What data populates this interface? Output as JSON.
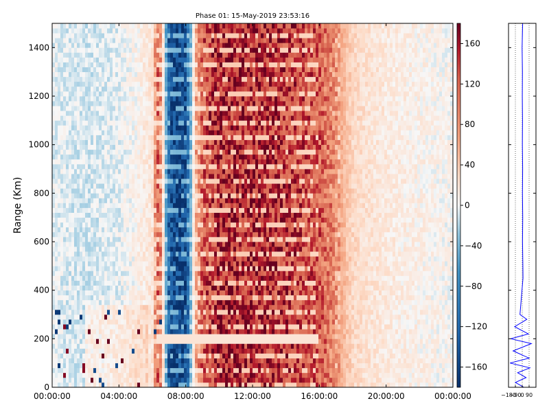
{
  "chart_data": [
    {
      "type": "heatmap",
      "title": "Phase 01: 15-May-2019 23:53:16",
      "xlabel": "",
      "ylabel": "Range (Km)",
      "xlim_hours": [
        0,
        24
      ],
      "ylim": [
        0,
        1500
      ],
      "x_tick_labels": [
        "00:00:00",
        "04:00:00",
        "08:00:00",
        "12:00:00",
        "16:00:00",
        "20:00:00",
        "00:00:00"
      ],
      "y_ticks": [
        0,
        200,
        400,
        600,
        800,
        1000,
        1200,
        1400
      ],
      "y_tick_labels": [
        "0",
        "200",
        "400",
        "600",
        "800",
        "1000",
        "1200",
        "1400"
      ],
      "colorbar": {
        "range": [
          -180,
          180
        ],
        "ticks": [
          -160,
          -120,
          -80,
          -40,
          0,
          40,
          80,
          120,
          160
        ],
        "tick_labels": [
          "−160",
          "−120",
          "−80",
          "−40",
          "0",
          "40",
          "80",
          "120",
          "160"
        ],
        "colormap": "RdBu_r",
        "colors": {
          "min": "#08306b",
          "mid": "#f7f7f7",
          "max": "#67001f"
        }
      },
      "phase_profile_by_hour": {
        "hours": [
          0,
          1,
          2,
          3,
          4,
          5,
          6,
          6.4,
          7,
          7.5,
          8,
          8.6,
          9,
          10,
          11,
          12,
          13,
          14,
          15,
          16,
          16.8,
          17.5,
          18,
          19,
          20,
          21,
          22,
          23,
          24
        ],
        "phase": [
          -5,
          -8,
          -10,
          -8,
          -5,
          5,
          20,
          130,
          -130,
          -160,
          -150,
          60,
          120,
          150,
          155,
          150,
          145,
          140,
          130,
          120,
          90,
          50,
          30,
          20,
          15,
          10,
          8,
          5,
          3
        ]
      },
      "notable_features": [
        {
          "label": "bright band",
          "range_km": 200,
          "hours": [
            6.3,
            16
          ]
        },
        {
          "label": "blue column",
          "hours": [
            7,
            8.4
          ]
        }
      ]
    },
    {
      "type": "line",
      "title": "",
      "xlabel": "",
      "ylabel": "",
      "xlim": [
        -180,
        180
      ],
      "ylim": [
        0,
        1500
      ],
      "x_tick_labels": [
        "−180",
        "−90",
        "0",
        "90"
      ],
      "series": [
        {
          "color": "#0000ff",
          "points": [
            [
              5,
              1500
            ],
            [
              -2,
              1400
            ],
            [
              3,
              1300
            ],
            [
              1,
              1200
            ],
            [
              4,
              1100
            ],
            [
              2,
              1000
            ],
            [
              5,
              900
            ],
            [
              3,
              800
            ],
            [
              6,
              700
            ],
            [
              4,
              600
            ],
            [
              8,
              500
            ],
            [
              10,
              450
            ],
            [
              -30,
              300
            ],
            [
              60,
              280
            ],
            [
              -100,
              250
            ],
            [
              80,
              220
            ],
            [
              -150,
              200
            ],
            [
              120,
              180
            ],
            [
              -120,
              150
            ],
            [
              90,
              120
            ],
            [
              -160,
              100
            ],
            [
              100,
              80
            ],
            [
              -60,
              60
            ],
            [
              50,
              40
            ],
            [
              -90,
              20
            ],
            [
              20,
              0
            ]
          ]
        }
      ]
    }
  ]
}
